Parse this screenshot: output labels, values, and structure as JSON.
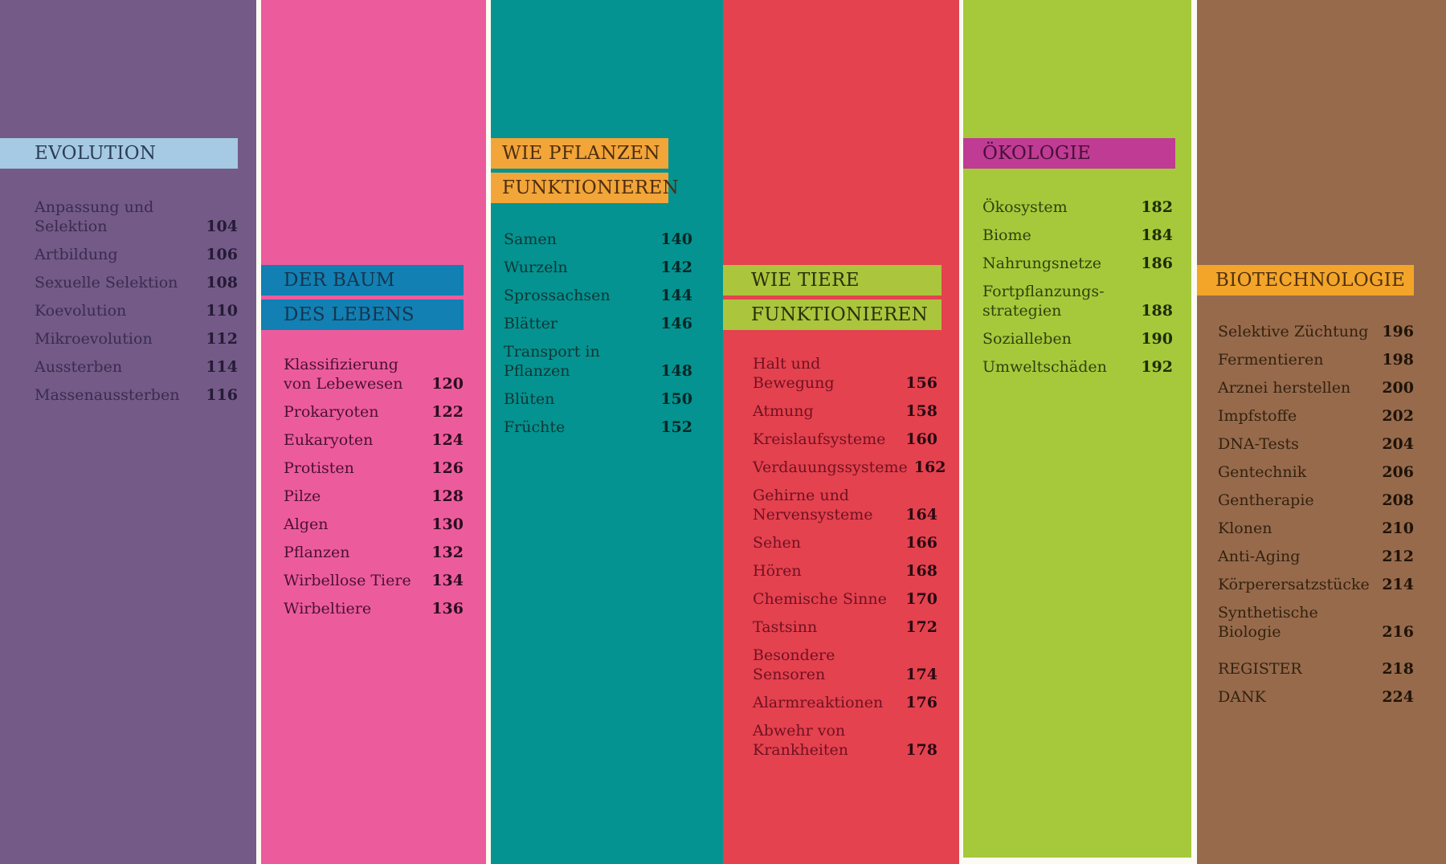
{
  "page": {
    "kind": "book-table-of-contents",
    "background": "#fcfbf3"
  },
  "sections": [
    {
      "id": "evolution",
      "title_lines": [
        "EVOLUTION"
      ],
      "colors": {
        "column_bg": "#735a87",
        "band_bg": "#a6cae3",
        "band_text": "#2c3d56",
        "label": "#3a2c4e",
        "number": "#261a36"
      },
      "entries": [
        {
          "label": "Anpassung und Selektion",
          "page": "104"
        },
        {
          "label": "Artbildung",
          "page": "106"
        },
        {
          "label": "Sexuelle Selektion",
          "page": "108"
        },
        {
          "label": "Koevolution",
          "page": "110"
        },
        {
          "label": "Mikroevolution",
          "page": "112"
        },
        {
          "label": "Aussterben",
          "page": "114"
        },
        {
          "label": "Massenaussterben",
          "page": "116"
        }
      ]
    },
    {
      "id": "der-baum-des-lebens",
      "title_lines": [
        "DER BAUM",
        "DES LEBENS"
      ],
      "colors": {
        "column_bg": "#ec5c9c",
        "band_bg": "#1280b2",
        "band_text": "#173550",
        "label": "#4b1132",
        "number": "#2b0c1e"
      },
      "entries": [
        {
          "label": "Klassifizierung\nvon Lebewesen",
          "page": "120"
        },
        {
          "label": "Prokaryoten",
          "page": "122"
        },
        {
          "label": "Eukaryoten",
          "page": "124"
        },
        {
          "label": "Protisten",
          "page": "126"
        },
        {
          "label": "Pilze",
          "page": "128"
        },
        {
          "label": "Algen",
          "page": "130"
        },
        {
          "label": "Pflanzen",
          "page": "132"
        },
        {
          "label": "Wirbellose Tiere",
          "page": "134"
        },
        {
          "label": "Wirbeltiere",
          "page": "136"
        }
      ]
    },
    {
      "id": "wie-pflanzen-funktionieren",
      "title_lines": [
        "WIE PFLANZEN",
        "FUNKTIONIEREN"
      ],
      "colors": {
        "column_bg": "#049390",
        "band_bg": "#f2a538",
        "band_text": "#4e2e10",
        "label": "#0f3636",
        "number": "#082625"
      },
      "entries": [
        {
          "label": "Samen",
          "page": "140"
        },
        {
          "label": "Wurzeln",
          "page": "142"
        },
        {
          "label": "Sprossachsen",
          "page": "144"
        },
        {
          "label": "Blätter",
          "page": "146"
        },
        {
          "label": "Transport in Pflanzen",
          "page": "148"
        },
        {
          "label": "Blüten",
          "page": "150"
        },
        {
          "label": "Früchte",
          "page": "152"
        }
      ]
    },
    {
      "id": "wie-tiere-funktionieren",
      "title_lines": [
        "WIE TIERE",
        "FUNKTIONIEREN"
      ],
      "colors": {
        "column_bg": "#e4424e",
        "band_bg": "#abc53d",
        "band_text": "#2a310c",
        "label": "#701123",
        "number": "#290a13"
      },
      "entries": [
        {
          "label": "Halt und Bewegung",
          "page": "156"
        },
        {
          "label": "Atmung",
          "page": "158"
        },
        {
          "label": "Kreislaufsysteme",
          "page": "160"
        },
        {
          "label": "Verdauungssysteme",
          "page": "162"
        },
        {
          "label": "Gehirne und\nNervensysteme",
          "page": "164"
        },
        {
          "label": "Sehen",
          "page": "166"
        },
        {
          "label": "Hören",
          "page": "168"
        },
        {
          "label": "Chemische Sinne",
          "page": "170"
        },
        {
          "label": "Tastsinn",
          "page": "172"
        },
        {
          "label": "Besondere Sensoren",
          "page": "174"
        },
        {
          "label": "Alarmreaktionen",
          "page": "176"
        },
        {
          "label": "Abwehr von\nKrankheiten",
          "page": "178"
        }
      ]
    },
    {
      "id": "oekologie",
      "title_lines": [
        "ÖKOLOGIE"
      ],
      "colors": {
        "column_bg": "#a5c93b",
        "band_bg": "#c03b93",
        "band_text": "#471039",
        "label": "#324010",
        "number": "#202c09"
      },
      "entries": [
        {
          "label": "Ökosystem",
          "page": "182"
        },
        {
          "label": "Biome",
          "page": "184"
        },
        {
          "label": "Nahrungsnetze",
          "page": "186"
        },
        {
          "label": "Fortpflanzungs-\nstrategien",
          "page": "188"
        },
        {
          "label": "Sozialleben",
          "page": "190"
        },
        {
          "label": "Umweltschäden",
          "page": "192"
        }
      ]
    },
    {
      "id": "biotechnologie",
      "title_lines": [
        "BIOTECHNOLOGIE"
      ],
      "colors": {
        "column_bg": "#976a4c",
        "band_bg": "#f3a52a",
        "band_text": "#513110",
        "label": "#33220f",
        "number": "#1f1307"
      },
      "entries": [
        {
          "label": "Selektive Züchtung",
          "page": "196"
        },
        {
          "label": "Fermentieren",
          "page": "198"
        },
        {
          "label": "Arznei herstellen",
          "page": "200"
        },
        {
          "label": "Impfstoffe",
          "page": "202"
        },
        {
          "label": "DNA-Tests",
          "page": "204"
        },
        {
          "label": "Gentechnik",
          "page": "206"
        },
        {
          "label": "Gentherapie",
          "page": "208"
        },
        {
          "label": "Klonen",
          "page": "210"
        },
        {
          "label": "Anti-Aging",
          "page": "212"
        },
        {
          "label": "Körperersatzstücke",
          "page": "214"
        },
        {
          "label": "Synthetische Biologie",
          "page": "216"
        }
      ],
      "back_entries": [
        {
          "label": "REGISTER",
          "page": "218"
        },
        {
          "label": "DANK",
          "page": "224"
        }
      ]
    }
  ]
}
